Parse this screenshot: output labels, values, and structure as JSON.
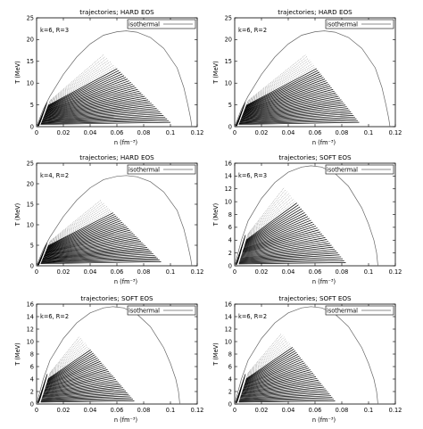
{
  "chart_data": [
    {
      "type": "line",
      "title": "trajectories; HARD EOS",
      "annotation": "k=6, R=3",
      "xlabel": "n (fm⁻³)",
      "ylabel": "T (MeV)",
      "xlim": [
        0,
        0.12
      ],
      "ylim": [
        0,
        25
      ],
      "xticks": [
        "0",
        "0.02",
        "0.04",
        "0.06",
        "0.08",
        "0.1",
        "0.12"
      ],
      "yticks": [
        "0",
        "5",
        "10",
        "15",
        "20",
        "25"
      ],
      "legend": "top-right",
      "series": [
        {
          "name": "isothermal",
          "style": "line",
          "x": [
            0,
            0.005,
            0.01,
            0.02,
            0.03,
            0.04,
            0.05,
            0.06,
            0.067,
            0.075,
            0.085,
            0.095,
            0.105,
            0.11,
            0.113,
            0.115,
            0.116
          ],
          "y": [
            0,
            4,
            7,
            12,
            16,
            19,
            21,
            21.8,
            22,
            21.7,
            20.5,
            18,
            13.5,
            9,
            5,
            2,
            0
          ]
        },
        {
          "name": "trajectories",
          "style": "fan",
          "count": 40,
          "start_x": [
            0.003,
            0.01
          ],
          "start_y": [
            0.5,
            6
          ],
          "end_x": [
            0.1,
            0.05
          ],
          "end_y": [
            1,
            16.5
          ]
        }
      ]
    },
    {
      "type": "line",
      "title": "trajectories; HARD EOS",
      "annotation": "k=6, R=2",
      "xlabel": "n (fm⁻³)",
      "ylabel": "T (MeV)",
      "xlim": [
        0,
        0.12
      ],
      "ylim": [
        0,
        25
      ],
      "xticks": [
        "0",
        "0.02",
        "0.04",
        "0.06",
        "0.08",
        "0.1",
        "0.12"
      ],
      "yticks": [
        "0",
        "5",
        "10",
        "15",
        "20",
        "25"
      ],
      "legend": "top-right",
      "series": [
        {
          "name": "isothermal",
          "style": "line",
          "x": [
            0,
            0.005,
            0.01,
            0.02,
            0.03,
            0.04,
            0.05,
            0.06,
            0.067,
            0.075,
            0.085,
            0.095,
            0.105,
            0.11,
            0.113,
            0.115,
            0.116
          ],
          "y": [
            0,
            4,
            7,
            12,
            16,
            19,
            21,
            21.8,
            22,
            21.7,
            20.5,
            18,
            13.5,
            9,
            5,
            2,
            0
          ]
        },
        {
          "name": "trajectories",
          "style": "fan",
          "count": 40,
          "start_x": [
            0.003,
            0.01
          ],
          "start_y": [
            0.5,
            6
          ],
          "end_x": [
            0.093,
            0.053
          ],
          "end_y": [
            1,
            16.5
          ]
        }
      ]
    },
    {
      "type": "line",
      "title": "trajectories; HARD EOS",
      "annotation": "k=4, R=2",
      "xlabel": "n (fm⁻³)",
      "ylabel": "T (MeV)",
      "xlim": [
        0,
        0.12
      ],
      "ylim": [
        0,
        25
      ],
      "xticks": [
        "0",
        "0.02",
        "0.04",
        "0.06",
        "0.08",
        "0.1",
        "0.12"
      ],
      "yticks": [
        "0",
        "5",
        "10",
        "15",
        "20",
        "25"
      ],
      "legend": "top-right",
      "series": [
        {
          "name": "isothermal",
          "style": "line",
          "x": [
            0,
            0.005,
            0.01,
            0.02,
            0.03,
            0.04,
            0.05,
            0.06,
            0.067,
            0.075,
            0.085,
            0.095,
            0.105,
            0.11,
            0.113,
            0.115,
            0.116
          ],
          "y": [
            0,
            4,
            7,
            12,
            16,
            19,
            21,
            21.8,
            22,
            21.7,
            20.5,
            18,
            13.5,
            9,
            5,
            2,
            0
          ]
        },
        {
          "name": "trajectories",
          "style": "fan",
          "count": 40,
          "start_x": [
            0.003,
            0.01
          ],
          "start_y": [
            0.5,
            6
          ],
          "end_x": [
            0.093,
            0.048
          ],
          "end_y": [
            1,
            16
          ]
        }
      ]
    },
    {
      "type": "line",
      "title": "trajectories; SOFT EOS",
      "annotation": "k=6, R=3",
      "xlabel": "n (fm⁻³)",
      "ylabel": "T (MeV)",
      "xlim": [
        0,
        0.12
      ],
      "ylim": [
        0,
        16
      ],
      "xticks": [
        "0",
        "0.02",
        "0.04",
        "0.06",
        "0.08",
        "0.1",
        "0.12"
      ],
      "yticks": [
        "0",
        "2",
        "4",
        "6",
        "8",
        "10",
        "12",
        "14",
        "16"
      ],
      "legend": "top-right",
      "series": [
        {
          "name": "isothermal",
          "style": "line",
          "x": [
            0,
            0.005,
            0.01,
            0.02,
            0.03,
            0.04,
            0.05,
            0.057,
            0.065,
            0.075,
            0.085,
            0.095,
            0.1,
            0.104,
            0.106,
            0.107
          ],
          "y": [
            0,
            4,
            7,
            10.5,
            13,
            14.6,
            15.4,
            15.6,
            15.4,
            14.4,
            12.4,
            9,
            6.5,
            4,
            2,
            0
          ]
        },
        {
          "name": "trajectories",
          "style": "fan",
          "count": 40,
          "start_x": [
            0.003,
            0.01
          ],
          "start_y": [
            0.3,
            5
          ],
          "end_x": [
            0.083,
            0.037
          ],
          "end_y": [
            0.5,
            12.2
          ]
        }
      ]
    },
    {
      "type": "line",
      "title": "trajectories; SOFT EOS",
      "annotation": "k=6, R=2",
      "xlabel": "n (fm⁻³)",
      "ylabel": "T (MeV)",
      "xlim": [
        0,
        0.12
      ],
      "ylim": [
        0,
        16
      ],
      "xticks": [
        "0",
        "0.02",
        "0.04",
        "0.06",
        "0.08",
        "0.1",
        "0.12"
      ],
      "yticks": [
        "0",
        "2",
        "4",
        "6",
        "8",
        "10",
        "12",
        "14",
        "16"
      ],
      "legend": "top-right",
      "series": [
        {
          "name": "isothermal",
          "style": "line",
          "x": [
            0,
            0.005,
            0.01,
            0.02,
            0.03,
            0.04,
            0.05,
            0.057,
            0.065,
            0.075,
            0.085,
            0.095,
            0.1,
            0.104,
            0.106,
            0.107
          ],
          "y": [
            0,
            4,
            7,
            10.5,
            13,
            14.6,
            15.4,
            15.6,
            15.4,
            14.4,
            12.4,
            9,
            6.5,
            4,
            2,
            0
          ]
        },
        {
          "name": "trajectories",
          "style": "fan",
          "count": 40,
          "start_x": [
            0.003,
            0.01
          ],
          "start_y": [
            0.3,
            5
          ],
          "end_x": [
            0.073,
            0.032
          ],
          "end_y": [
            0.5,
            10.8
          ]
        }
      ]
    },
    {
      "type": "line",
      "title": "trajectories; SOFT EOS",
      "annotation": "k=6, R=2",
      "xlabel": "n (fm⁻³)",
      "ylabel": "T (MeV)",
      "xlim": [
        0,
        0.12
      ],
      "ylim": [
        0,
        16
      ],
      "xticks": [
        "0",
        "0.02",
        "0.04",
        "0.06",
        "0.08",
        "0.1",
        "0.12"
      ],
      "yticks": [
        "0",
        "2",
        "4",
        "6",
        "8",
        "10",
        "12",
        "14",
        "16"
      ],
      "legend": "top-right",
      "series": [
        {
          "name": "isothermal",
          "style": "line",
          "x": [
            0,
            0.005,
            0.01,
            0.02,
            0.03,
            0.04,
            0.05,
            0.057,
            0.065,
            0.075,
            0.085,
            0.095,
            0.1,
            0.104,
            0.106,
            0.107
          ],
          "y": [
            0,
            4,
            7,
            10.5,
            13,
            14.6,
            15.4,
            15.6,
            15.4,
            14.4,
            12.4,
            9,
            6.5,
            4,
            2,
            0
          ]
        },
        {
          "name": "trajectories",
          "style": "fan",
          "count": 40,
          "start_x": [
            0.003,
            0.01
          ],
          "start_y": [
            0.3,
            5
          ],
          "end_x": [
            0.075,
            0.035
          ],
          "end_y": [
            0.5,
            11.3
          ]
        }
      ]
    }
  ]
}
